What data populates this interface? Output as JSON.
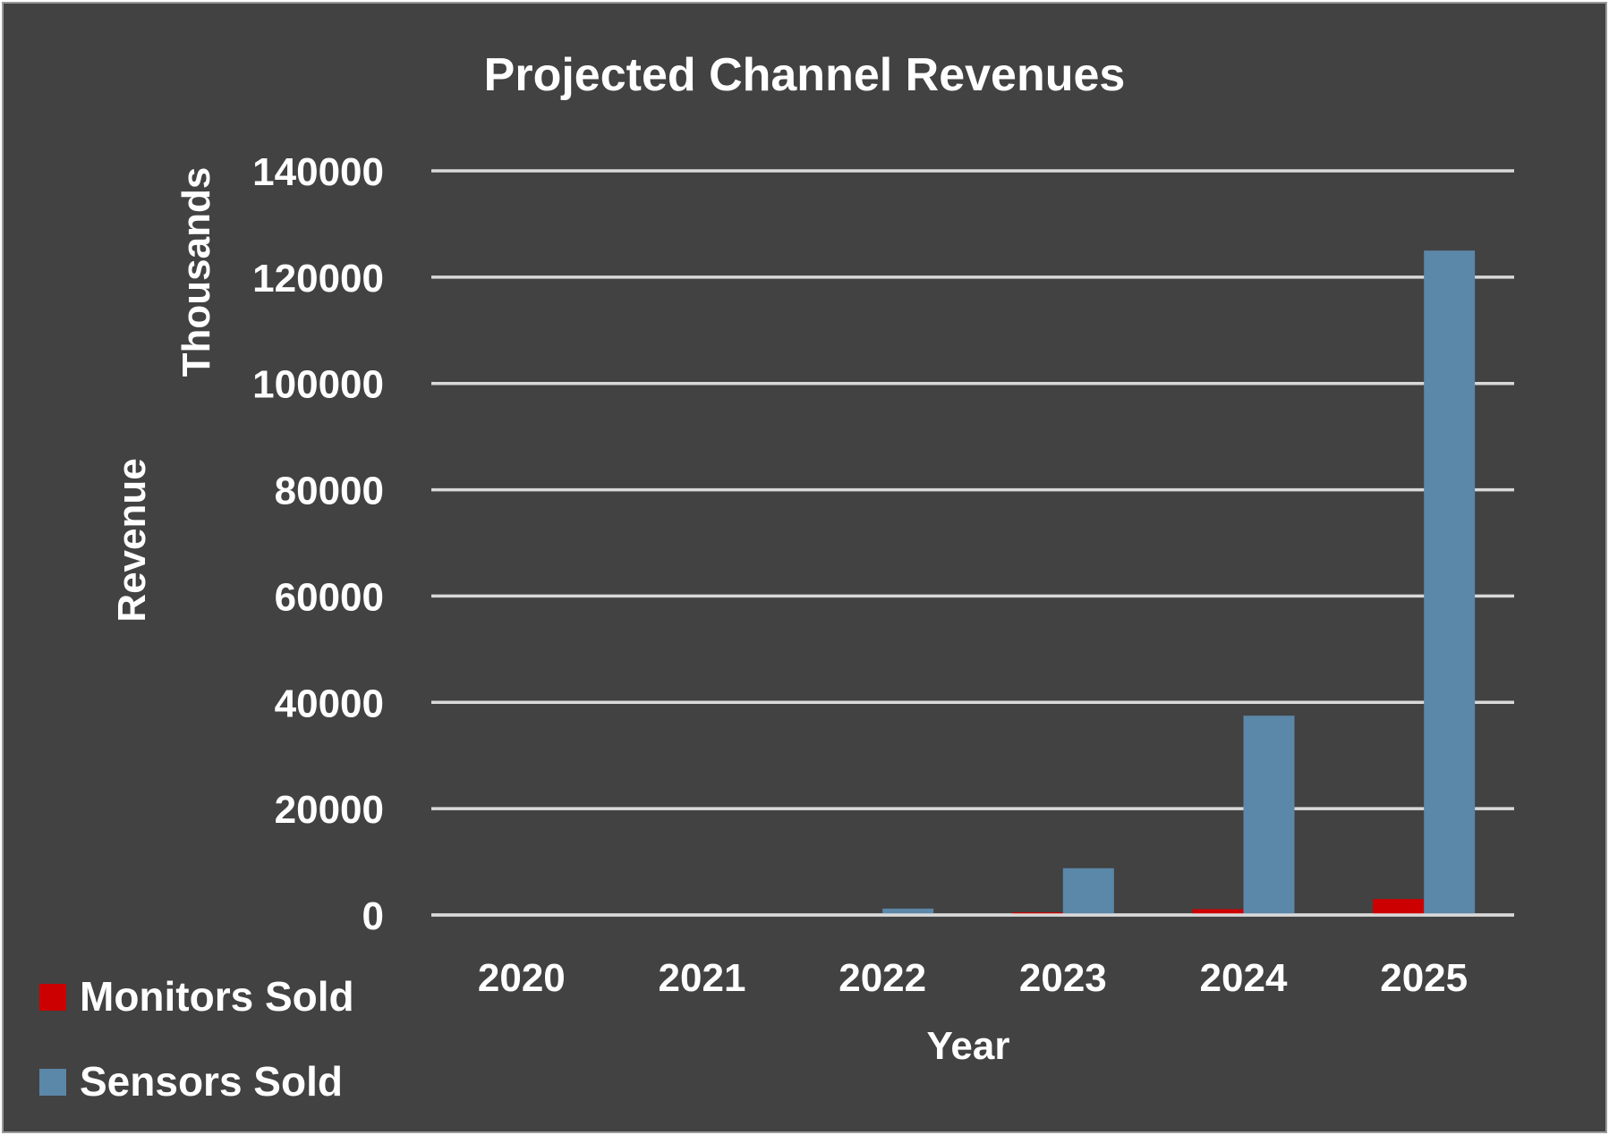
{
  "chart_data": {
    "type": "bar",
    "title": "Projected Channel Revenues",
    "xlabel": "Year",
    "ylabel": "Revenue",
    "yunit_label": "Thousands",
    "categories": [
      "2020",
      "2021",
      "2022",
      "2023",
      "2024",
      "2025"
    ],
    "series": [
      {
        "name": "Monitors Sold",
        "color": "#cc0000",
        "values": [
          0,
          0,
          100,
          500,
          1100,
          3000
        ]
      },
      {
        "name": "Sensors Sold",
        "color": "#5b87a8",
        "values": [
          0,
          0,
          1200,
          8800,
          37500,
          125000
        ]
      }
    ],
    "ylim": [
      0,
      140000
    ],
    "yticks": [
      "0",
      "20000",
      "40000",
      "60000",
      "80000",
      "100000",
      "120000",
      "140000"
    ],
    "grid": true,
    "legend_position": "bottom-left",
    "colors": {
      "background": "#424242",
      "text": "#ffffff",
      "grid": "#d9d9d9"
    }
  }
}
